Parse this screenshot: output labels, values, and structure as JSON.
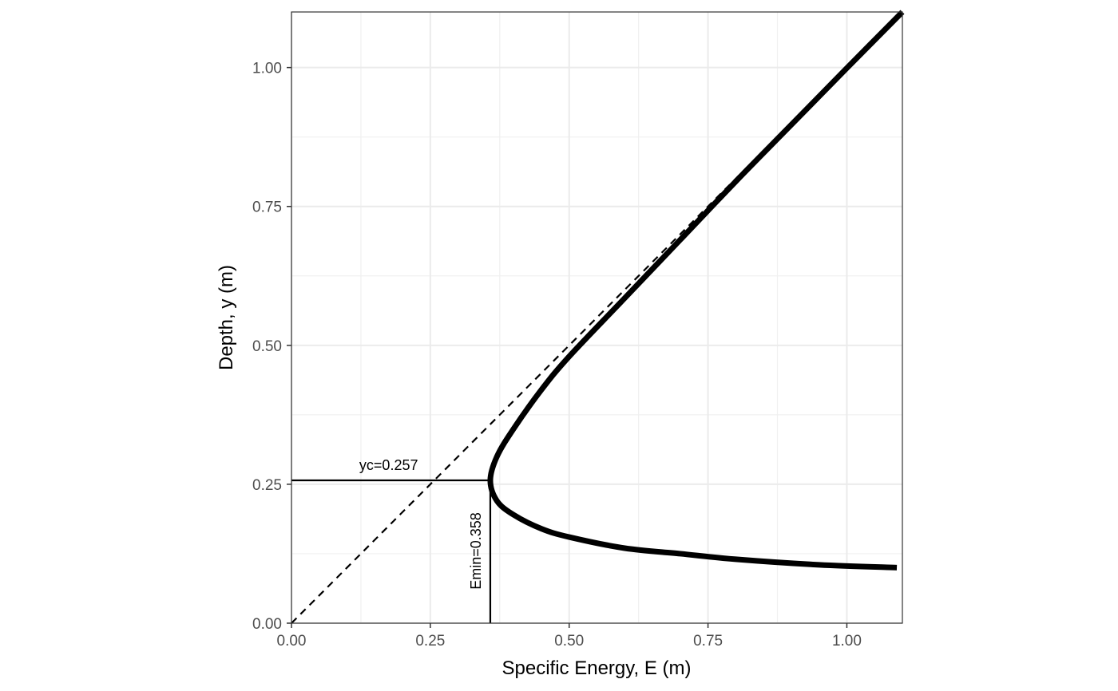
{
  "chart_data": {
    "type": "line",
    "xlabel": "Specific Energy, E (m)",
    "ylabel": "Depth, y (m)",
    "xlim": [
      0,
      1.1
    ],
    "ylim": [
      0,
      1.1
    ],
    "x_ticks": [
      0.0,
      0.25,
      0.5,
      0.75,
      1.0
    ],
    "x_tick_labels": [
      "0.00",
      "0.25",
      "0.50",
      "0.75",
      "1.00"
    ],
    "y_ticks": [
      0.0,
      0.25,
      0.5,
      0.75,
      1.0
    ],
    "y_tick_labels": [
      "0.00",
      "0.25",
      "0.50",
      "0.75",
      "1.00"
    ],
    "grid": true,
    "series": [
      {
        "style": "solid-thick",
        "color": "#000000",
        "points": [
          [
            1.09,
            0.1
          ],
          [
            0.95,
            0.105
          ],
          [
            0.8,
            0.115
          ],
          [
            0.7,
            0.125
          ],
          [
            0.6,
            0.135
          ],
          [
            0.5,
            0.155
          ],
          [
            0.45,
            0.17
          ],
          [
            0.4,
            0.195
          ],
          [
            0.37,
            0.22
          ],
          [
            0.358,
            0.257
          ],
          [
            0.37,
            0.3
          ],
          [
            0.4,
            0.35
          ],
          [
            0.45,
            0.42
          ],
          [
            0.5,
            0.48
          ],
          [
            0.6,
            0.585
          ],
          [
            0.7,
            0.69
          ],
          [
            0.8,
            0.795
          ],
          [
            0.9,
            0.897
          ],
          [
            1.0,
            0.999
          ],
          [
            1.1,
            1.1
          ]
        ]
      },
      {
        "style": "dashed",
        "color": "#000000",
        "points": [
          [
            0,
            0
          ],
          [
            1.1,
            1.1
          ]
        ]
      }
    ],
    "reference_lines": {
      "critical_depth": {
        "y": 0.257,
        "x_from": 0,
        "x_to": 0.358
      },
      "min_energy": {
        "x": 0.358,
        "y_from": 0,
        "y_to": 0.257
      }
    },
    "annotations": [
      {
        "text": "yc=0.257",
        "x": 0.175,
        "y": 0.257
      },
      {
        "text": "Emin=0.358",
        "x": 0.358,
        "y": 0.13,
        "rotate": true
      }
    ]
  }
}
